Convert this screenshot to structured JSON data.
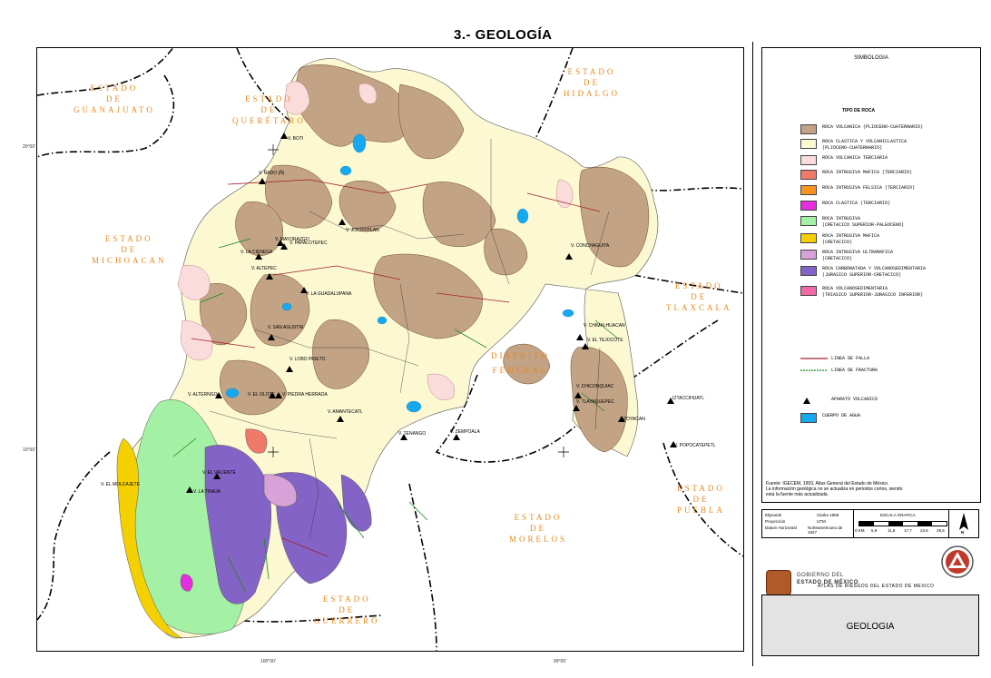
{
  "title": "3.- GEOLOGÍA",
  "states": [
    {
      "name": "ESTADO\nDE\nGUANAJUATO"
    },
    {
      "name": "ESTADO\nDE\nQUERÉTARO"
    },
    {
      "name": "ESTADO\nDE\nHIDALGO"
    },
    {
      "name": "ESTADO\nDE\nMICHOACAN"
    },
    {
      "name": "ESTADO\nDE\nTLAXCALA"
    },
    {
      "name": "DISTRITO\nFEDERAL"
    },
    {
      "name": "ESTADO\nDE\nPUEBLA"
    },
    {
      "name": "ESTADO\nDE\nMORELOS"
    },
    {
      "name": "ESTADO\nDE\nGUERRERO"
    }
  ],
  "coords": [
    "20°00'",
    "19°00'",
    "100°00'",
    "99°00'"
  ],
  "volcanoes": [
    "V. BOTI",
    "V. ÑADO (Ñ)",
    "V. JOCOTITLAN",
    "V. MAYORAZGO",
    "V. LA CIENEGA",
    "V. PAPALOTEPEC",
    "V. ALTEPEC",
    "V. LA GUADALUPANA",
    "V. SAN AGUSTIN",
    "V. LOBO PRIETO",
    "V. ALTERNGO",
    "V. EL OLOTE",
    "V. PIEDRA HERRADA",
    "V. AMANTECATL",
    "V. TENANGO",
    "V. ZEMPOALA",
    "V. EL VALIENTE",
    "V. LA TINAJA",
    "V. EL MOLCAJETE",
    "V. CONCHAGUITA",
    "V. CHIMALHUACAN",
    "V. EL TEJOCOTE",
    "V. CHICONQUIAC",
    "V. TLAYAQUEPEC",
    "IZTACCIHUATL",
    "ZOYACAN",
    "V. POPOCATEPETL"
  ],
  "legend": {
    "heading": "SIMBOLOGIA",
    "subheading": "TIPO DE ROCA",
    "rock_types": [
      {
        "label": "ROCA VOLCANICA (PLIOCENO-CUATERNARIO)",
        "color": "#c2a385"
      },
      {
        "label": "ROCA CLASTICA Y VOLCANICLASTICA\n(PLIOCENO-CUATERNARIO)",
        "color": "#fbf8d2"
      },
      {
        "label": "ROCA VOLCANICA TERCIARIA",
        "color": "#fbdcdc"
      },
      {
        "label": "ROCA INTRUSIVA MAFICA (TERCIARIO)",
        "color": "#f07a6a"
      },
      {
        "label": "ROCA INTRUSIVA FELSICA (TERCIARIO)",
        "color": "#f7941d"
      },
      {
        "label": "ROCA CLASTICA (TERCIARIO)",
        "color": "#e62ee0"
      },
      {
        "label": "ROCA INTRUSIVA\n(CRETACICO SUPERIOR-PALEOCENO)",
        "color": "#a4f0a4"
      },
      {
        "label": "ROCA INTRUSIVA MAFICA\n(CRETACICO)",
        "color": "#f5d000"
      },
      {
        "label": "ROCA INTRUSIVA ULTRAMAFICA\n(CRETACICO)",
        "color": "#d7a2d7"
      },
      {
        "label": "ROCA CARBONATADA Y VOLCANOSEDIMENTARIA\n(JURASICO SUPERIOR-CRETACICO)",
        "color": "#8463c6"
      },
      {
        "label": "ROCA VOLCANOSEDIMENTARIA\n(TRIASICO SUPERIOR-JURASICO INFERIOR)",
        "color": "#f06aa8"
      }
    ],
    "lines": [
      {
        "label": "LINEA DE FALLA",
        "color": "#a0202a"
      },
      {
        "label": "LINEA DE FRACTURA",
        "color": "#1a8a1a"
      }
    ],
    "symbols": [
      {
        "label": "APARATO VOLCANICO",
        "icon": "triangle"
      },
      {
        "label": "CUERPO DE AGUA",
        "color": "#16a9f0"
      }
    ],
    "source": "Fuente: IGECEM, 1993, Atlas General del Estado de México.\nLa información geológica no se actualiza en periodos cortos, siendo\nesta la fuente más actualizada.",
    "cartographic": {
      "elipsoide_label": "Elipsoide",
      "elipsoide_value": "Clarke 1866",
      "proyeccion_label": "Proyección",
      "proyeccion_value": "UTM",
      "datum_label": "Datum Horizontal",
      "datum_value": "Norteamericano de 1927"
    },
    "scale": {
      "title": "ESCALA GRAFICA",
      "ticks": [
        "0 KM.",
        "5,9",
        "11,8",
        "17,7",
        "23,6",
        "29,5"
      ]
    },
    "north": "N",
    "logo_text_1": "GOBIERNO DEL",
    "logo_text_2": "ESTADO DE MÉXICO",
    "atlas_caption": "ATLAS DE RIESGOS DEL ESTADO DE MEXICO",
    "footer_title": "GEOLOGIA"
  }
}
